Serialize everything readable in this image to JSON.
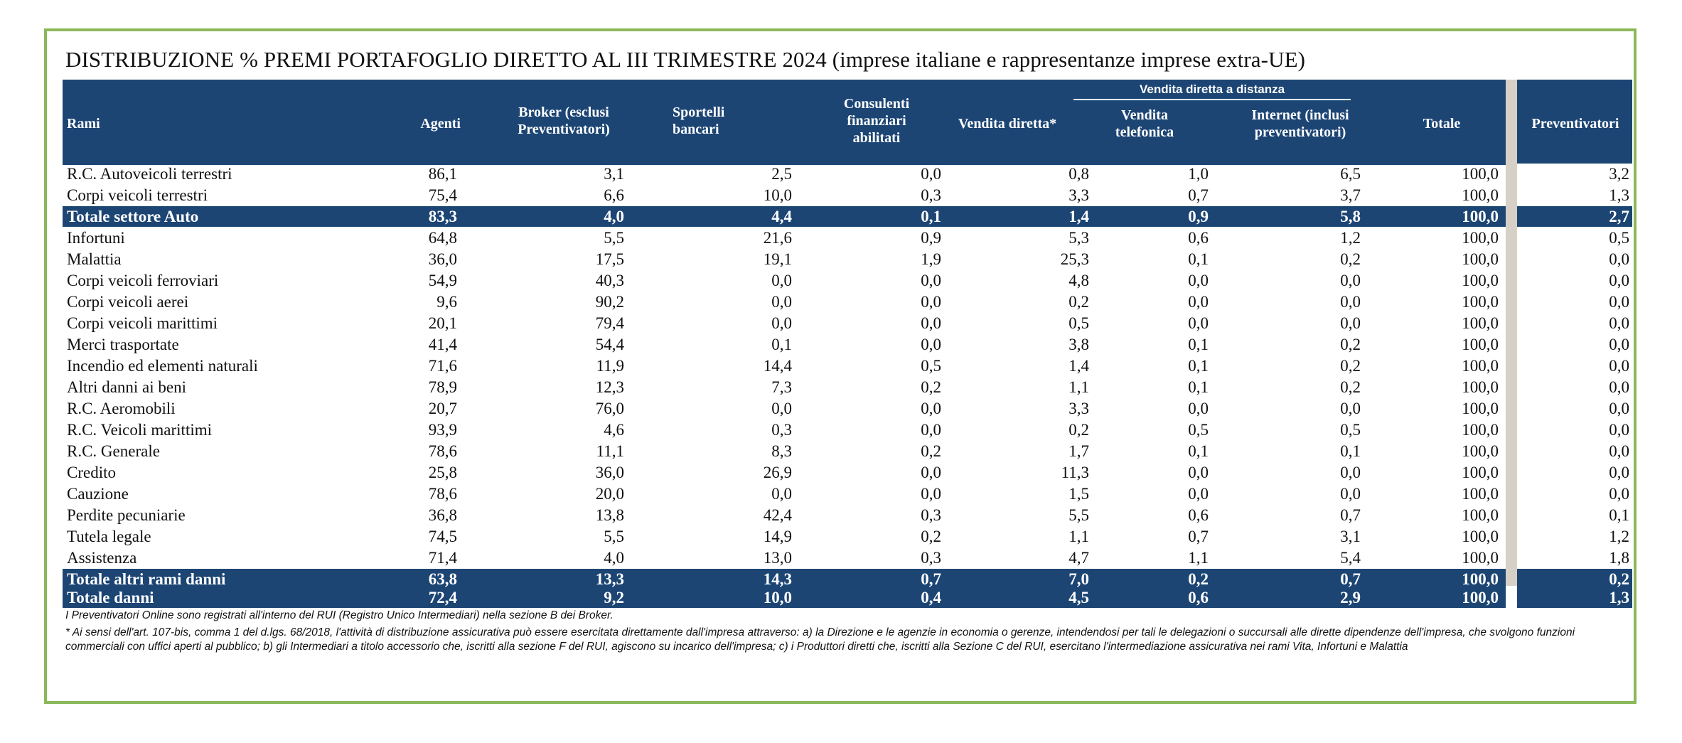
{
  "title": "DISTRIBUZIONE % PREMI PORTAFOGLIO DIRETTO AL III TRIMESTRE 2024 (imprese italiane e rappresentanze imprese extra-UE)",
  "subgroup_header": "Vendita diretta a distanza",
  "columns": {
    "rami": "Rami",
    "agenti": "Agenti",
    "broker": "Broker (esclusi Preventivatori)",
    "sportelli": "Sportelli bancari",
    "consulenti": "Consulenti finanziari abilitati",
    "vendita_diretta": "Vendita diretta*",
    "vendita_telefonica": "Vendita telefonica",
    "internet": "Internet (inclusi preventivatori)",
    "totale": "Totale",
    "preventivatori": "Preventivatori"
  },
  "rows": [
    {
      "name": "R.C. Autoveicoli terrestri",
      "values": [
        "86,1",
        "3,1",
        "2,5",
        "0,0",
        "0,8",
        "1,0",
        "6,5",
        "100,0",
        "3,2"
      ],
      "total": false
    },
    {
      "name": "Corpi veicoli terrestri",
      "values": [
        "75,4",
        "6,6",
        "10,0",
        "0,3",
        "3,3",
        "0,7",
        "3,7",
        "100,0",
        "1,3"
      ],
      "total": false
    },
    {
      "name": "Totale settore Auto",
      "values": [
        "83,3",
        "4,0",
        "4,4",
        "0,1",
        "1,4",
        "0,9",
        "5,8",
        "100,0",
        "2,7"
      ],
      "total": true
    },
    {
      "name": "Infortuni",
      "values": [
        "64,8",
        "5,5",
        "21,6",
        "0,9",
        "5,3",
        "0,6",
        "1,2",
        "100,0",
        "0,5"
      ],
      "total": false
    },
    {
      "name": "Malattia",
      "values": [
        "36,0",
        "17,5",
        "19,1",
        "1,9",
        "25,3",
        "0,1",
        "0,2",
        "100,0",
        "0,0"
      ],
      "total": false
    },
    {
      "name": "Corpi veicoli ferroviari",
      "values": [
        "54,9",
        "40,3",
        "0,0",
        "0,0",
        "4,8",
        "0,0",
        "0,0",
        "100,0",
        "0,0"
      ],
      "total": false
    },
    {
      "name": "Corpi veicoli aerei",
      "values": [
        "9,6",
        "90,2",
        "0,0",
        "0,0",
        "0,2",
        "0,0",
        "0,0",
        "100,0",
        "0,0"
      ],
      "total": false
    },
    {
      "name": "Corpi veicoli marittimi",
      "values": [
        "20,1",
        "79,4",
        "0,0",
        "0,0",
        "0,5",
        "0,0",
        "0,0",
        "100,0",
        "0,0"
      ],
      "total": false
    },
    {
      "name": "Merci trasportate",
      "values": [
        "41,4",
        "54,4",
        "0,1",
        "0,0",
        "3,8",
        "0,1",
        "0,2",
        "100,0",
        "0,0"
      ],
      "total": false
    },
    {
      "name": "Incendio ed elementi naturali",
      "values": [
        "71,6",
        "11,9",
        "14,4",
        "0,5",
        "1,4",
        "0,1",
        "0,2",
        "100,0",
        "0,0"
      ],
      "total": false
    },
    {
      "name": "Altri danni ai beni",
      "values": [
        "78,9",
        "12,3",
        "7,3",
        "0,2",
        "1,1",
        "0,1",
        "0,2",
        "100,0",
        "0,0"
      ],
      "total": false
    },
    {
      "name": "R.C. Aeromobili",
      "values": [
        "20,7",
        "76,0",
        "0,0",
        "0,0",
        "3,3",
        "0,0",
        "0,0",
        "100,0",
        "0,0"
      ],
      "total": false
    },
    {
      "name": "R.C. Veicoli marittimi",
      "values": [
        "93,9",
        "4,6",
        "0,3",
        "0,0",
        "0,2",
        "0,5",
        "0,5",
        "100,0",
        "0,0"
      ],
      "total": false
    },
    {
      "name": "R.C. Generale",
      "values": [
        "78,6",
        "11,1",
        "8,3",
        "0,2",
        "1,7",
        "0,1",
        "0,1",
        "100,0",
        "0,0"
      ],
      "total": false
    },
    {
      "name": "Credito",
      "values": [
        "25,8",
        "36,0",
        "26,9",
        "0,0",
        "11,3",
        "0,0",
        "0,0",
        "100,0",
        "0,0"
      ],
      "total": false
    },
    {
      "name": "Cauzione",
      "values": [
        "78,6",
        "20,0",
        "0,0",
        "0,0",
        "1,5",
        "0,0",
        "0,0",
        "100,0",
        "0,0"
      ],
      "total": false
    },
    {
      "name": "Perdite pecuniarie",
      "values": [
        "36,8",
        "13,8",
        "42,4",
        "0,3",
        "5,5",
        "0,6",
        "0,7",
        "100,0",
        "0,1"
      ],
      "total": false
    },
    {
      "name": "Tutela legale",
      "values": [
        "74,5",
        "5,5",
        "14,9",
        "0,2",
        "1,1",
        "0,7",
        "3,1",
        "100,0",
        "1,2"
      ],
      "total": false
    },
    {
      "name": "Assistenza",
      "values": [
        "71,4",
        "4,0",
        "13,0",
        "0,3",
        "4,7",
        "1,1",
        "5,4",
        "100,0",
        "1,8"
      ],
      "total": false
    },
    {
      "name": "Totale altri rami danni",
      "values": [
        "63,8",
        "13,3",
        "14,3",
        "0,7",
        "7,0",
        "0,2",
        "0,7",
        "100,0",
        "0,2"
      ],
      "total": true
    },
    {
      "name": "Totale danni",
      "values": [
        "72,4",
        "9,2",
        "10,0",
        "0,4",
        "4,5",
        "0,6",
        "2,9",
        "100,0",
        "1,3"
      ],
      "total": true
    }
  ],
  "notes": {
    "note1": "I Preventivatori Online sono registrati all'interno del RUI (Registro Unico Intermediari) nella sezione B dei Broker.",
    "note2": "* Ai sensi dell'art. 107-bis, comma 1 del d.lgs. 68/2018, l'attività di distribuzione assicurativa può essere esercitata direttamente dall'impresa attraverso: a) la Direzione e le agenzie in economia o gerenze, intendendosi per tali le delegazioni o succursali alle dirette dipendenze dell'impresa, che svolgono funzioni commerciali con uffici aperti al pubblico; b) gli Intermediari a titolo accessorio che, iscritti alla sezione F del RUI, agiscono su incarico dell'impresa; c) i Produttori diretti che, iscritti alla Sezione C del RUI, esercitano l'intermediazione assicurativa nei rami Vita, Infortuni e Malattia"
  },
  "colors": {
    "header_bg": "#1c4574",
    "frame_border": "#8ab85a",
    "separator": "#d6d0c6"
  }
}
